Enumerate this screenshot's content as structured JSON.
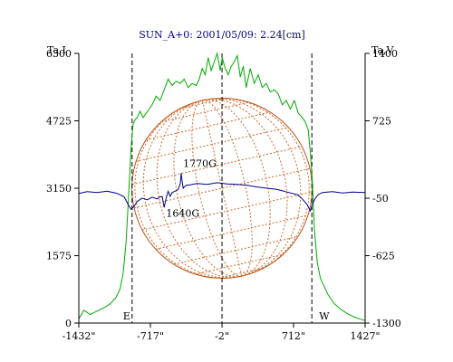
{
  "chart_data": {
    "type": "line",
    "title": "SUN_A+0: 2001/05/09: 2.24[cm]",
    "y_left_label": "Ta,I",
    "y_right_label": "Ta,V",
    "x_ticks": [
      "-1432\"",
      "-717\"",
      "-2\"",
      "712\"",
      "1427\""
    ],
    "x_tick_values": [
      -1432,
      -717,
      -2,
      712,
      1427
    ],
    "xlim": [
      -1432,
      1427
    ],
    "y_left_ticks": [
      "0",
      "1575",
      "3150",
      "4725",
      "6300"
    ],
    "y_left_tick_values": [
      0,
      1575,
      3150,
      4725,
      6300
    ],
    "ylim_left": [
      0,
      6300
    ],
    "y_right_ticks": [
      "-1300",
      "-625",
      "-50",
      "725",
      "1400"
    ],
    "y_right_tick_values": [
      -1300,
      -625,
      -50,
      725,
      1400
    ],
    "ylim_right": [
      -1300,
      1400
    ],
    "limb_markers": [
      {
        "label": "E",
        "x": -900
      },
      {
        "label": "W",
        "x": 895
      }
    ],
    "center_marker_x": -2,
    "annotations": [
      {
        "text": "1770G",
        "x": -390,
        "y": 3650
      },
      {
        "text": "1640G",
        "x": -560,
        "y": 2480
      }
    ],
    "disk": {
      "center_x": -2,
      "center_y": 3150,
      "radius_arcsec": 900
    },
    "series": [
      {
        "name": "",
        "axis": "left",
        "color": "#00aa00",
        "x": [
          -1432,
          -1380,
          -1320,
          -1250,
          -1180,
          -1120,
          -1060,
          -1020,
          -990,
          -960,
          -930,
          -910,
          -890,
          -870,
          -850,
          -820,
          -790,
          -760,
          -730,
          -700,
          -660,
          -620,
          -580,
          -540,
          -500,
          -460,
          -420,
          -380,
          -340,
          -300,
          -260,
          -230,
          -200,
          -170,
          -140,
          -110,
          -80,
          -50,
          -20,
          0,
          30,
          60,
          90,
          120,
          150,
          180,
          210,
          240,
          280,
          320,
          360,
          400,
          440,
          480,
          520,
          560,
          600,
          640,
          680,
          720,
          760,
          800,
          830,
          860,
          880,
          900,
          920,
          950,
          980,
          1020,
          1060,
          1120,
          1180,
          1250,
          1320,
          1380,
          1427
        ],
        "y": [
          100,
          300,
          200,
          280,
          360,
          450,
          600,
          800,
          1150,
          1900,
          3200,
          4100,
          4650,
          4750,
          4800,
          4950,
          4800,
          4900,
          5000,
          5100,
          5300,
          5200,
          5450,
          5700,
          5550,
          5650,
          5600,
          5700,
          5500,
          5600,
          5550,
          5700,
          5950,
          5800,
          6200,
          5900,
          6100,
          6300,
          5900,
          6200,
          5950,
          5800,
          6000,
          6100,
          6250,
          5750,
          6000,
          5500,
          5950,
          5600,
          5800,
          5500,
          5600,
          5400,
          5450,
          5350,
          5100,
          5200,
          5000,
          5200,
          4900,
          4800,
          4700,
          4500,
          4000,
          3300,
          2200,
          1400,
          1050,
          850,
          650,
          450,
          330,
          220,
          140,
          90,
          60
        ]
      },
      {
        "name": "",
        "axis": "left",
        "color": "#00008b",
        "x": [
          -1432,
          -1350,
          -1250,
          -1150,
          -1050,
          -980,
          -940,
          -910,
          -880,
          -850,
          -800,
          -750,
          -700,
          -650,
          -620,
          -600,
          -580,
          -560,
          -540,
          -520,
          -500,
          -470,
          -440,
          -420,
          -410,
          -400,
          -390,
          -380,
          -360,
          -320,
          -250,
          -150,
          -50,
          50,
          150,
          250,
          350,
          450,
          550,
          650,
          750,
          800,
          850,
          880,
          900,
          930,
          960,
          1000,
          1100,
          1200,
          1300,
          1427
        ],
        "y": [
          3030,
          3070,
          3050,
          3080,
          3030,
          2950,
          2770,
          2660,
          2730,
          2840,
          2920,
          2880,
          2940,
          2900,
          2950,
          2960,
          2700,
          2920,
          3080,
          2960,
          3050,
          3080,
          3120,
          3250,
          3500,
          3300,
          3150,
          3180,
          3220,
          3230,
          3260,
          3240,
          3280,
          3250,
          3240,
          3220,
          3180,
          3150,
          3120,
          3060,
          3000,
          2900,
          2760,
          2620,
          2780,
          2920,
          3000,
          3050,
          3070,
          3040,
          3060,
          3050
        ]
      }
    ],
    "colors": {
      "axes": "#000000",
      "title": "#00008b",
      "disk": "#b8541a",
      "grid_lines": "#cc6a2a"
    },
    "legend": "none",
    "grid": false
  }
}
